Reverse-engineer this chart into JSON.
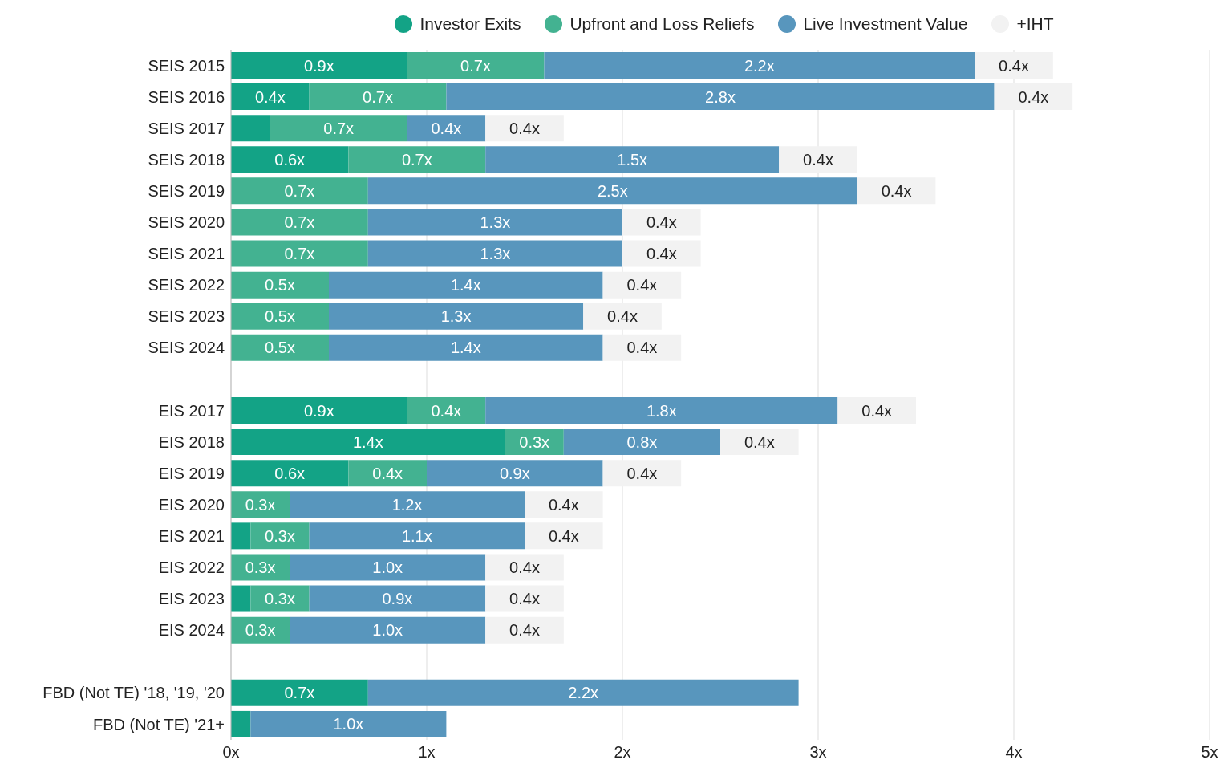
{
  "chart_data": {
    "type": "bar",
    "orientation": "horizontal",
    "stacked": true,
    "categories": [
      "SEIS 2015",
      "SEIS 2016",
      "SEIS 2017",
      "SEIS 2018",
      "SEIS 2019",
      "SEIS 2020",
      "SEIS 2021",
      "SEIS 2022",
      "SEIS 2023",
      "SEIS 2024",
      null,
      "EIS 2017",
      "EIS 2018",
      "EIS 2019",
      "EIS 2020",
      "EIS 2021",
      "EIS 2022",
      "EIS 2023",
      "EIS 2024",
      null,
      "FBD (Not TE) '18, '19, '20",
      "FBD (Not TE) '21+"
    ],
    "series": [
      {
        "name": "Investor Exits",
        "color": "#13a386",
        "values": [
          0.9,
          0.4,
          0.2,
          0.6,
          null,
          null,
          null,
          null,
          null,
          null,
          null,
          0.9,
          1.4,
          0.6,
          null,
          0.1,
          null,
          0.1,
          null,
          null,
          0.7,
          0.1
        ],
        "value_labels": [
          "0.9x",
          "0.4x",
          null,
          "0.6x",
          null,
          null,
          null,
          null,
          null,
          null,
          null,
          "0.9x",
          "1.4x",
          "0.6x",
          null,
          null,
          null,
          null,
          null,
          null,
          "0.7x",
          null
        ]
      },
      {
        "name": "Upfront and Loss Reliefs",
        "color": "#43b291",
        "values": [
          0.7,
          0.7,
          0.7,
          0.7,
          0.7,
          0.7,
          0.7,
          0.5,
          0.5,
          0.5,
          null,
          0.4,
          0.3,
          0.4,
          0.3,
          0.3,
          0.3,
          0.3,
          0.3,
          null,
          null,
          null
        ],
        "value_labels": [
          "0.7x",
          "0.7x",
          "0.7x",
          "0.7x",
          "0.7x",
          "0.7x",
          "0.7x",
          "0.5x",
          "0.5x",
          "0.5x",
          null,
          "0.4x",
          "0.3x",
          "0.4x",
          "0.3x",
          "0.3x",
          "0.3x",
          "0.3x",
          "0.3x",
          null,
          null,
          null
        ]
      },
      {
        "name": "Live Investment Value",
        "color": "#5896bd",
        "values": [
          2.2,
          2.8,
          0.4,
          1.5,
          2.5,
          1.3,
          1.3,
          1.4,
          1.3,
          1.4,
          null,
          1.8,
          0.8,
          0.9,
          1.2,
          1.1,
          1.0,
          0.9,
          1.0,
          null,
          2.2,
          1.0
        ],
        "value_labels": [
          "2.2x",
          "2.8x",
          "0.4x",
          "1.5x",
          "2.5x",
          "1.3x",
          "1.3x",
          "1.4x",
          "1.3x",
          "1.4x",
          null,
          "1.8x",
          "0.8x",
          "0.9x",
          "1.2x",
          "1.1x",
          "1.0x",
          "0.9x",
          "1.0x",
          null,
          "2.2x",
          "1.0x"
        ]
      },
      {
        "name": "+IHT",
        "color": "#f2f2f2",
        "values": [
          0.4,
          0.4,
          0.4,
          0.4,
          0.4,
          0.4,
          0.4,
          0.4,
          0.4,
          0.4,
          null,
          0.4,
          0.4,
          0.4,
          0.4,
          0.4,
          0.4,
          0.4,
          0.4,
          null,
          null,
          null
        ],
        "value_labels": [
          "0.4x",
          "0.4x",
          "0.4x",
          "0.4x",
          "0.4x",
          "0.4x",
          "0.4x",
          "0.4x",
          "0.4x",
          "0.4x",
          null,
          "0.4x",
          "0.4x",
          "0.4x",
          "0.4x",
          "0.4x",
          "0.4x",
          "0.4x",
          "0.4x",
          null,
          null,
          null
        ]
      }
    ],
    "xlim": [
      0,
      5
    ],
    "xticks": [
      {
        "value": 0,
        "label": "0x"
      },
      {
        "value": 1,
        "label": "1x"
      },
      {
        "value": 2,
        "label": "2x"
      },
      {
        "value": 3,
        "label": "3x"
      },
      {
        "value": 4,
        "label": "4x"
      },
      {
        "value": 5,
        "label": "5x"
      }
    ],
    "grid": "x",
    "legend": "top"
  }
}
